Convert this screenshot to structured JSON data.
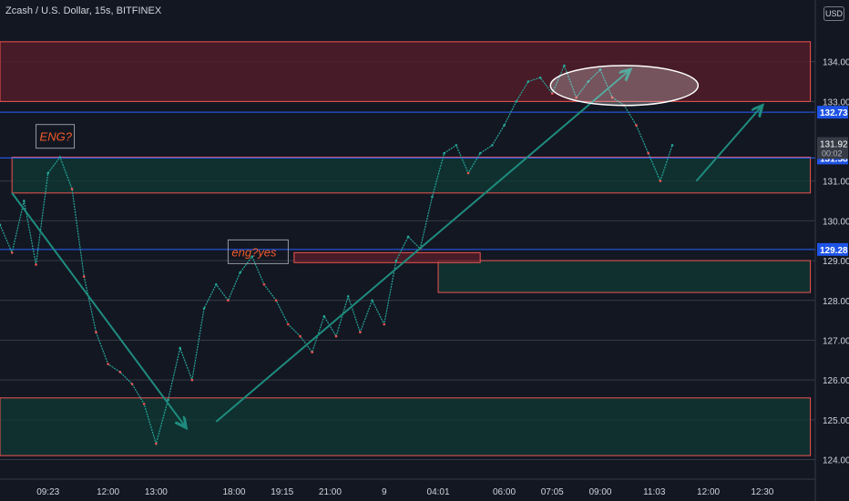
{
  "header": {
    "title": "Zcash / U.S. Dollar, 15s, BITFINEX",
    "currency": "USD"
  },
  "colors": {
    "bg": "#131722",
    "up": "#26a69a",
    "down": "#ef5350",
    "red_zone": "#5a1e2a",
    "green_zone": "#0f3a34",
    "level_blue": "#2962ff",
    "grid": "#363a45",
    "axis_text": "#d1d4dc",
    "note_text": "#f05a28",
    "arrow": "#1e8c7e"
  },
  "chart_data": {
    "type": "line",
    "title": "Zcash / U.S. Dollar, 15s, BITFINEX",
    "xlabel": "",
    "ylabel": "",
    "ylim": [
      123.6,
      135.0
    ],
    "y_ticks": [
      "134.00",
      "133.00",
      "131.00",
      "130.00",
      "129.00",
      "128.00",
      "127.00",
      "126.00",
      "125.00",
      "124.00"
    ],
    "x_ticks": [
      "09:23",
      "12:00",
      "13:00",
      "18:00",
      "19:15",
      "21:00",
      "9",
      "04:01",
      "06:00",
      "07:05",
      "09:00",
      "11:03",
      "12:00",
      "12:30"
    ],
    "x_tick_idx": [
      8,
      18,
      26,
      39,
      47,
      55,
      64,
      73,
      84,
      92,
      100,
      109,
      118,
      127
    ],
    "x_count": 135,
    "series": [
      {
        "x": [
          0,
          2,
          4,
          6,
          8,
          10,
          12,
          14,
          16,
          18,
          20,
          22,
          24,
          26,
          28,
          30,
          32,
          34,
          36,
          38,
          40,
          42,
          44,
          46,
          48,
          50,
          52,
          54,
          56,
          58,
          60,
          62,
          64,
          66,
          68,
          70,
          72,
          74,
          76,
          78,
          80,
          82,
          84,
          86,
          88,
          90,
          92,
          94,
          96,
          98,
          100,
          102,
          104,
          106,
          108,
          110,
          112
        ],
        "values": [
          129.9,
          129.2,
          130.5,
          128.9,
          131.2,
          131.6,
          130.8,
          128.6,
          127.2,
          126.4,
          126.2,
          125.9,
          125.4,
          124.4,
          125.5,
          126.8,
          126.0,
          127.8,
          128.4,
          128.0,
          128.7,
          129.1,
          128.4,
          128.0,
          127.4,
          127.1,
          126.7,
          127.6,
          127.1,
          128.1,
          127.2,
          128.0,
          127.4,
          129.0,
          129.6,
          129.3,
          130.6,
          131.7,
          131.9,
          131.2,
          131.7,
          131.9,
          132.4,
          133.0,
          133.5,
          133.6,
          133.2,
          133.9,
          133.1,
          133.5,
          133.8,
          133.1,
          132.9,
          132.4,
          131.7,
          131.0,
          131.9
        ]
      }
    ],
    "levels": [
      {
        "value": 132.73,
        "label": "132.73"
      },
      {
        "value": 131.58,
        "label": "131.58"
      },
      {
        "value": 129.28,
        "label": "129.28"
      }
    ],
    "last_price": {
      "value": 131.92,
      "label": "131.92",
      "countdown": "00:02"
    },
    "zones": [
      {
        "type": "resistance",
        "y_top": 134.5,
        "y_bottom": 133.0,
        "x_start": 0,
        "x_end": 135
      },
      {
        "type": "support",
        "y_top": 131.6,
        "y_bottom": 130.7,
        "x_start": 2,
        "x_end": 135
      },
      {
        "type": "support",
        "y_top": 129.0,
        "y_bottom": 128.2,
        "x_start": 73,
        "x_end": 135
      },
      {
        "type": "support",
        "y_top": 125.55,
        "y_bottom": 124.1,
        "x_start": 0,
        "x_end": 135
      },
      {
        "type": "resistance",
        "y_top": 129.2,
        "y_bottom": 128.95,
        "x_start": 49,
        "x_end": 80
      }
    ],
    "annotations": [
      {
        "text": "ENG?",
        "x": 6,
        "y": 132.1
      },
      {
        "text": "eng?yes",
        "x": 38,
        "y": 129.2
      }
    ],
    "trend_arrows": [
      {
        "from": [
          2,
          130.7
        ],
        "to": [
          31,
          124.8
        ]
      },
      {
        "from": [
          36,
          124.95
        ],
        "to": [
          105,
          133.8
        ]
      },
      {
        "from": [
          116,
          131.0
        ],
        "to": [
          127,
          132.9
        ]
      }
    ],
    "highlight_ellipse": {
      "x_center": 104,
      "y_center": 133.4,
      "x_radius": 12.3,
      "y_radius": 0.5
    }
  }
}
